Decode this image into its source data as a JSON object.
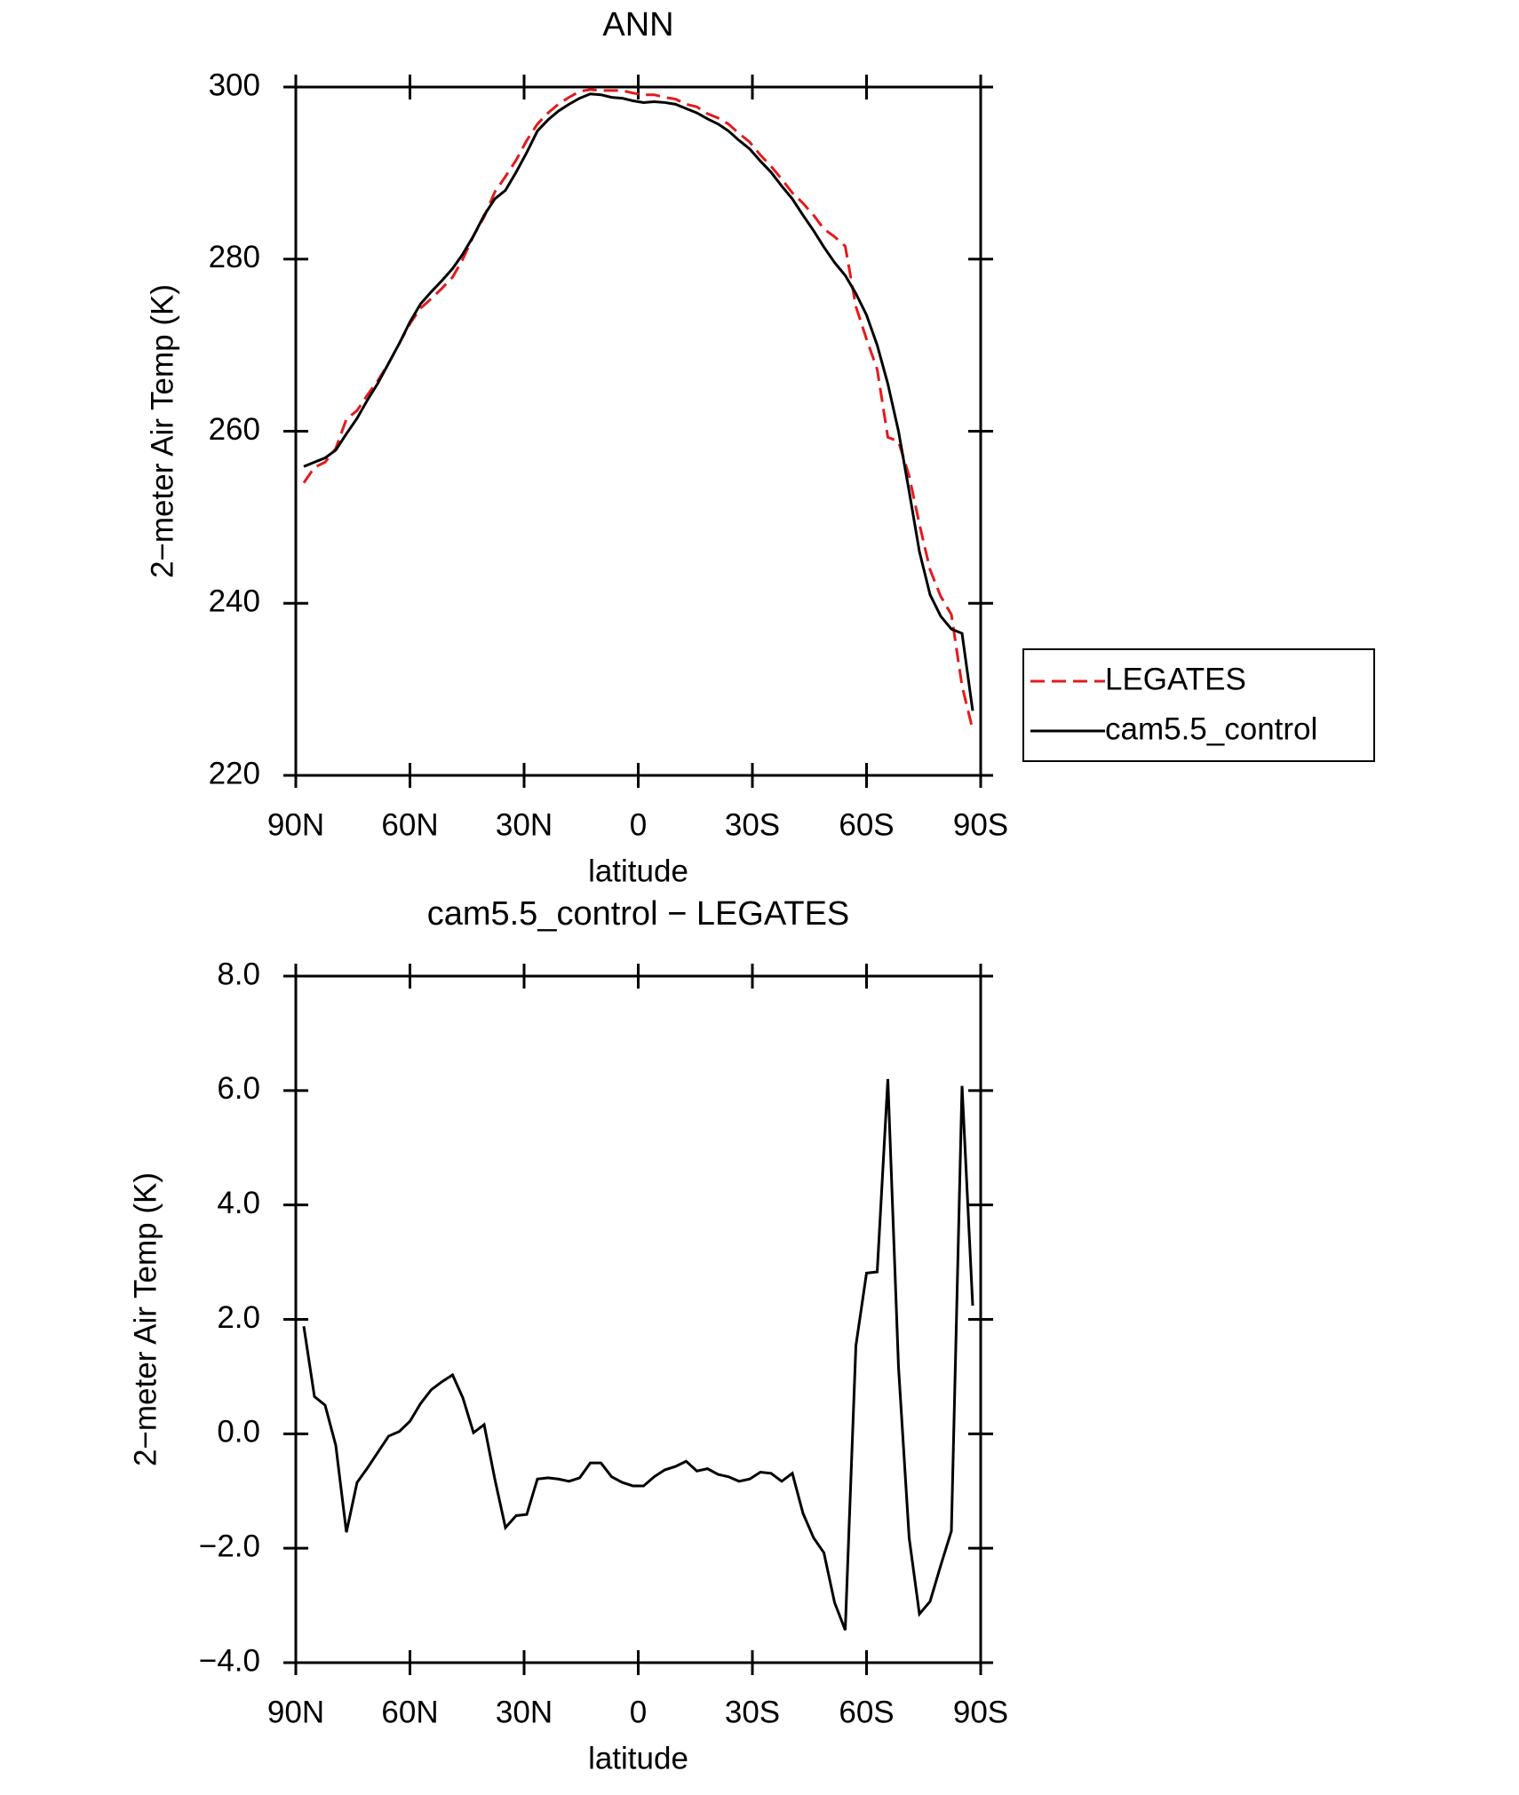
{
  "chart_data": [
    {
      "type": "line",
      "title": "ANN",
      "xlabel": "latitude",
      "ylabel": "2−meter Air Temp (K)",
      "x": [
        87.9,
        85.1,
        82.3,
        79.5,
        76.7,
        73.9,
        71.2,
        68.4,
        65.6,
        62.8,
        60.0,
        57.2,
        54.4,
        51.6,
        48.8,
        46.1,
        43.3,
        40.5,
        37.7,
        34.9,
        32.1,
        29.3,
        26.5,
        23.7,
        21.0,
        18.2,
        15.4,
        12.6,
        9.8,
        7.0,
        4.2,
        1.4,
        -1.4,
        -4.2,
        -7.0,
        -9.8,
        -12.6,
        -15.4,
        -18.2,
        -21.0,
        -23.7,
        -26.5,
        -29.3,
        -32.1,
        -34.9,
        -37.7,
        -40.5,
        -43.3,
        -46.1,
        -48.8,
        -51.6,
        -54.4,
        -57.2,
        -60.0,
        -62.8,
        -65.6,
        -68.4,
        -71.2,
        -73.9,
        -76.7,
        -79.5,
        -82.3,
        -85.1,
        -87.9
      ],
      "series": [
        {
          "name": "LEGATES",
          "color": "#e41a1c",
          "dashed": true,
          "values": [
            254.0,
            255.8,
            256.4,
            258.0,
            261.4,
            262.4,
            264.2,
            265.9,
            267.9,
            270.2,
            272.5,
            274.3,
            275.4,
            276.6,
            277.9,
            280.0,
            282.7,
            284.9,
            287.8,
            289.6,
            291.5,
            293.8,
            295.7,
            297.0,
            298.0,
            298.8,
            299.5,
            299.7,
            299.6,
            299.6,
            299.6,
            299.3,
            299.1,
            299.1,
            298.8,
            298.6,
            298.0,
            297.7,
            296.9,
            296.4,
            295.7,
            294.6,
            293.6,
            292.1,
            290.8,
            289.3,
            287.7,
            286.5,
            285.1,
            283.5,
            282.6,
            281.5,
            274.5,
            270.7,
            267.2,
            259.3,
            258.8,
            254.8,
            249.2,
            243.9,
            240.8,
            238.7,
            230.4,
            225.3
          ]
        },
        {
          "name": "cam5.5_control",
          "color": "#000000",
          "dashed": false,
          "values": [
            255.9,
            256.4,
            256.9,
            257.8,
            259.7,
            261.5,
            263.6,
            265.6,
            267.9,
            270.2,
            272.7,
            274.8,
            276.2,
            277.5,
            278.9,
            280.6,
            282.7,
            285.1,
            287.0,
            288.0,
            290.1,
            292.4,
            294.9,
            296.2,
            297.2,
            298.0,
            298.7,
            299.2,
            299.1,
            298.8,
            298.7,
            298.4,
            298.2,
            298.3,
            298.2,
            298.0,
            297.5,
            297.0,
            296.3,
            295.7,
            294.9,
            293.8,
            292.8,
            291.4,
            290.1,
            288.5,
            287.0,
            285.1,
            283.3,
            281.4,
            279.6,
            278.1,
            276.0,
            273.5,
            270.0,
            265.5,
            260.0,
            253.0,
            246.0,
            241.0,
            238.5,
            237.0,
            236.5,
            227.5
          ]
        }
      ],
      "xlim": [
        90,
        -90
      ],
      "xticks": [
        {
          "value": 90,
          "label": "90N"
        },
        {
          "value": 60,
          "label": "60N"
        },
        {
          "value": 30,
          "label": "30N"
        },
        0,
        {
          "value": -30,
          "label": "30S"
        },
        {
          "value": -60,
          "label": "60S"
        },
        {
          "value": -90,
          "label": "90S"
        }
      ],
      "ylim": [
        220,
        300
      ],
      "yticks": [
        220,
        240,
        260,
        280,
        300
      ],
      "legend": "right"
    },
    {
      "type": "line",
      "title": "cam5.5_control − LEGATES",
      "xlabel": "latitude",
      "ylabel": "2−meter Air Temp (K)",
      "x": [
        87.9,
        85.1,
        82.3,
        79.5,
        76.7,
        73.9,
        71.2,
        68.4,
        65.6,
        62.8,
        60.0,
        57.2,
        54.4,
        51.6,
        48.8,
        46.1,
        43.3,
        40.5,
        37.7,
        34.9,
        32.1,
        29.3,
        26.5,
        23.7,
        21.0,
        18.2,
        15.4,
        12.6,
        9.8,
        7.0,
        4.2,
        1.4,
        -1.4,
        -4.2,
        -7.0,
        -9.8,
        -12.6,
        -15.4,
        -18.2,
        -21.0,
        -23.7,
        -26.5,
        -29.3,
        -32.1,
        -34.9,
        -37.7,
        -40.5,
        -43.3,
        -46.1,
        -48.8,
        -51.6,
        -54.4,
        -57.2,
        -60.0,
        -62.8,
        -65.6,
        -68.4,
        -71.2,
        -73.9,
        -76.7,
        -79.5,
        -82.3,
        -85.1,
        -87.9
      ],
      "color": "#000000",
      "values": [
        1.88,
        0.65,
        0.5,
        -0.2,
        -1.72,
        -0.85,
        -0.6,
        -0.32,
        -0.04,
        0.04,
        0.22,
        0.53,
        0.77,
        0.91,
        1.03,
        0.63,
        0.02,
        0.16,
        -0.79,
        -1.64,
        -1.43,
        -1.41,
        -0.79,
        -0.77,
        -0.79,
        -0.83,
        -0.77,
        -0.51,
        -0.51,
        -0.75,
        -0.85,
        -0.91,
        -0.91,
        -0.75,
        -0.63,
        -0.57,
        -0.48,
        -0.65,
        -0.61,
        -0.71,
        -0.75,
        -0.83,
        -0.79,
        -0.67,
        -0.69,
        -0.83,
        -0.69,
        -1.39,
        -1.82,
        -2.08,
        -2.95,
        -3.43,
        1.54,
        2.81,
        2.83,
        6.2,
        1.17,
        -1.82,
        -3.15,
        -2.93,
        -2.3,
        -1.7,
        6.08,
        2.24
      ],
      "xlim": [
        90,
        -90
      ],
      "xticks": [
        {
          "value": 90,
          "label": "90N"
        },
        {
          "value": 60,
          "label": "60N"
        },
        {
          "value": 30,
          "label": "30N"
        },
        0,
        {
          "value": -30,
          "label": "30S"
        },
        {
          "value": -60,
          "label": "60S"
        },
        {
          "value": -90,
          "label": "90S"
        }
      ],
      "ylim": [
        -4,
        8
      ],
      "yticks": [
        {
          "value": -4,
          "label": "−4.0"
        },
        {
          "value": -2,
          "label": "−2.0"
        },
        {
          "value": 0,
          "label": "0.0"
        },
        {
          "value": 2,
          "label": "2.0"
        },
        {
          "value": 4,
          "label": "4.0"
        },
        {
          "value": 6,
          "label": "6.0"
        },
        {
          "value": 8,
          "label": "8.0"
        }
      ]
    }
  ]
}
